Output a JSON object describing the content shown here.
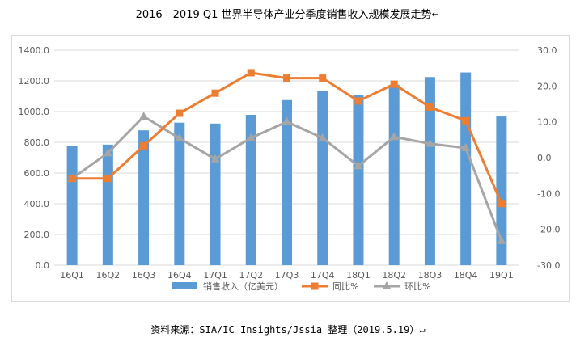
{
  "title": "2016—2019 Q1 世界半导体产业分季度销售收入规模发展走势↵",
  "source": "资料来源：SIA/IC Insights/Jssia 整理（2019.5.19）↵",
  "chart_data": {
    "type": "bar",
    "categories": [
      "16Q1",
      "16Q2",
      "16Q3",
      "16Q4",
      "17Q1",
      "17Q2",
      "17Q3",
      "17Q4",
      "18Q1",
      "18Q2",
      "18Q3",
      "18Q4",
      "19Q1"
    ],
    "series": [
      {
        "name": "销售收入（亿美元）",
        "type": "bar",
        "axis": "left",
        "color": "#5b9bd5",
        "values": [
          775,
          785,
          878,
          928,
          922,
          979,
          1075,
          1135,
          1107,
          1175,
          1225,
          1255,
          968
        ]
      },
      {
        "name": "同比%",
        "type": "line",
        "axis": "right",
        "color": "#ed7d31",
        "marker": "square",
        "values": [
          -5.8,
          -5.8,
          3.3,
          12.4,
          18.0,
          23.7,
          22.2,
          22.2,
          15.8,
          20.5,
          14.1,
          10.3,
          -12.8
        ]
      },
      {
        "name": "环比%",
        "type": "line",
        "axis": "right",
        "color": "#a5a5a5",
        "marker": "triangle",
        "values": [
          -5.8,
          1.3,
          11.5,
          5.4,
          -0.4,
          5.5,
          10.0,
          5.5,
          -2.3,
          5.8,
          3.9,
          2.7,
          -23.2
        ]
      }
    ],
    "left_axis": {
      "ylim": [
        0,
        1400
      ],
      "ticks": [
        "0.0",
        "200.0",
        "400.0",
        "600.0",
        "800.0",
        "1000.0",
        "1200.0",
        "1400.0"
      ]
    },
    "right_axis": {
      "ylim": [
        -30,
        30
      ],
      "ticks": [
        "-30.0",
        "-20.0",
        "-10.0",
        "0.0",
        "10.0",
        "20.0",
        "30.0"
      ]
    },
    "grid": true,
    "legend_position": "bottom"
  }
}
